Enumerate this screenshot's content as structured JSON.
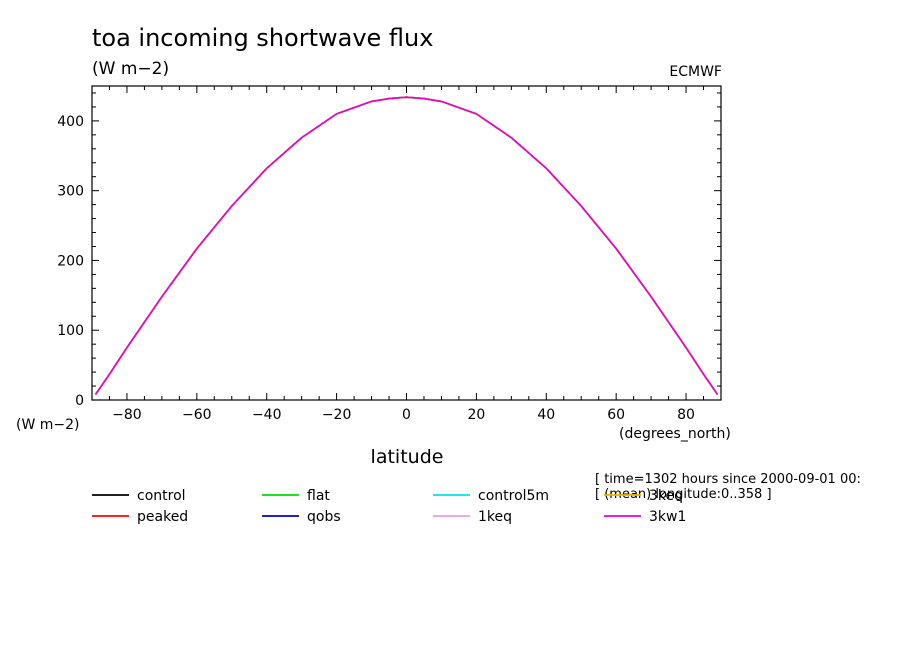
{
  "chart_data": {
    "type": "line",
    "title": "toa incoming shortwave flux",
    "subtitle": "(W m−2)",
    "source_label": "ECMWF",
    "xlabel": "latitude",
    "x_units": "(degrees_north)",
    "y_units": "(W m−2)",
    "xlim": [
      -90,
      90
    ],
    "ylim": [
      0,
      450
    ],
    "x_ticks": [
      -80,
      -60,
      -40,
      -20,
      0,
      20,
      40,
      60,
      80
    ],
    "x_tick_labels": [
      "−80",
      "−60",
      "−40",
      "−20",
      "0",
      "20",
      "40",
      "60",
      "80"
    ],
    "y_ticks": [
      0,
      100,
      200,
      300,
      400
    ],
    "y_tick_labels": [
      "0",
      "100",
      "200",
      "300",
      "400"
    ],
    "grid": false,
    "info_lines": [
      "[ time=1302 hours since 2000-09-01 00:",
      "[ (mean) longitude:0..358 ]"
    ],
    "x": [
      -89,
      -85,
      -80,
      -70,
      -60,
      -50,
      -40,
      -30,
      -20,
      -10,
      -5,
      0,
      5,
      10,
      20,
      30,
      40,
      50,
      60,
      70,
      80,
      85,
      89
    ],
    "series": [
      {
        "name": "control",
        "color": "#000000",
        "values": [
          8,
          37,
          75,
          148,
          217,
          278,
          332,
          376,
          410,
          428,
          432,
          434,
          432,
          428,
          410,
          376,
          332,
          278,
          217,
          148,
          75,
          37,
          8
        ]
      },
      {
        "name": "peaked",
        "color": "#ff0000",
        "values": [
          8,
          37,
          75,
          148,
          217,
          278,
          332,
          376,
          410,
          428,
          432,
          434,
          432,
          428,
          410,
          376,
          332,
          278,
          217,
          148,
          75,
          37,
          8
        ]
      },
      {
        "name": "flat",
        "color": "#00dd00",
        "values": [
          8,
          37,
          75,
          148,
          217,
          278,
          332,
          376,
          410,
          428,
          432,
          434,
          432,
          428,
          410,
          376,
          332,
          278,
          217,
          148,
          75,
          37,
          8
        ]
      },
      {
        "name": "qobs",
        "color": "#0000cc",
        "values": [
          8,
          37,
          75,
          148,
          217,
          278,
          332,
          376,
          410,
          428,
          432,
          434,
          432,
          428,
          410,
          376,
          332,
          278,
          217,
          148,
          75,
          37,
          8
        ]
      },
      {
        "name": "control5m",
        "color": "#00e5e5",
        "values": [
          8,
          37,
          75,
          148,
          217,
          278,
          332,
          376,
          410,
          428,
          432,
          434,
          432,
          428,
          410,
          376,
          332,
          278,
          217,
          148,
          75,
          37,
          8
        ]
      },
      {
        "name": "1keq",
        "color": "#e6a0e6",
        "values": [
          8,
          37,
          75,
          148,
          217,
          278,
          332,
          376,
          410,
          428,
          432,
          434,
          432,
          428,
          410,
          376,
          332,
          278,
          217,
          148,
          75,
          37,
          8
        ]
      },
      {
        "name": "3keq",
        "color": "#e6b400",
        "values": [
          8,
          37,
          75,
          148,
          217,
          278,
          332,
          376,
          410,
          428,
          432,
          434,
          432,
          428,
          410,
          376,
          332,
          278,
          217,
          148,
          75,
          37,
          8
        ]
      },
      {
        "name": "3kw1",
        "color": "#ee00cc",
        "values": [
          8,
          37,
          75,
          148,
          217,
          278,
          332,
          376,
          410,
          428,
          432,
          434,
          432,
          428,
          410,
          376,
          332,
          278,
          217,
          148,
          75,
          37,
          8
        ]
      }
    ],
    "legend_placement": "bottom"
  }
}
